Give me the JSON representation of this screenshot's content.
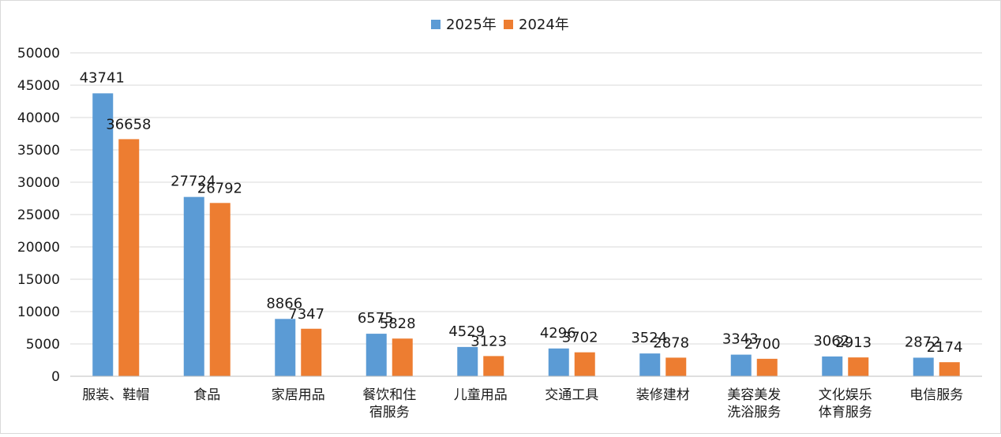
{
  "chart_data": {
    "type": "bar",
    "title": "",
    "xlabel": "",
    "ylabel": "",
    "ylim": [
      0,
      50000
    ],
    "yticks": [
      0,
      5000,
      10000,
      15000,
      20000,
      25000,
      30000,
      35000,
      40000,
      45000,
      50000
    ],
    "grid": true,
    "legend_position": "top-center",
    "categories": [
      [
        "服装、鞋帽"
      ],
      [
        "食品"
      ],
      [
        "家居用品"
      ],
      [
        "餐饮和住",
        "宿服务"
      ],
      [
        "儿童用品"
      ],
      [
        "交通工具"
      ],
      [
        "装修建材"
      ],
      [
        "美容美发",
        "洗浴服务"
      ],
      [
        "文化娱乐",
        "体育服务"
      ],
      [
        "电信服务"
      ]
    ],
    "series": [
      {
        "name": "2025年",
        "color": "#5B9BD5",
        "values": [
          43741,
          27724,
          8866,
          6575,
          4529,
          4296,
          3524,
          3343,
          3062,
          2872
        ]
      },
      {
        "name": "2024年",
        "color": "#ED7D31",
        "values": [
          36658,
          26792,
          7347,
          5828,
          3123,
          3702,
          2878,
          2700,
          2913,
          2174
        ]
      }
    ]
  }
}
